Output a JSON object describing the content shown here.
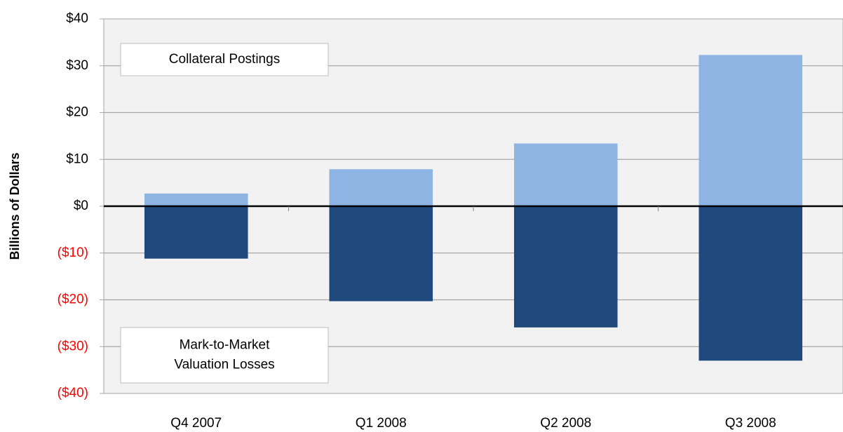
{
  "chart_data": {
    "type": "bar",
    "y_label": "Billions of Dollars",
    "categories": [
      "Q4 2007",
      "Q1 2008",
      "Q2 2008",
      "Q3 2008"
    ],
    "series": [
      {
        "name": "Collateral Postings",
        "color": "#8eb4e3",
        "values": [
          2.7,
          7.9,
          13.4,
          32.3
        ]
      },
      {
        "name": "Mark-to-Market Valuation Losses",
        "color": "#1f497d",
        "values": [
          -11.2,
          -20.3,
          -25.9,
          -33.0
        ]
      }
    ],
    "annotations": [
      {
        "lines": [
          "Collateral Postings"
        ]
      },
      {
        "lines": [
          "Mark-to-Market",
          "Valuation Losses"
        ]
      }
    ],
    "ylim": [
      -40,
      40
    ],
    "yticks": [
      {
        "value": 40,
        "label": "$40"
      },
      {
        "value": 30,
        "label": "$30"
      },
      {
        "value": 20,
        "label": "$20"
      },
      {
        "value": 10,
        "label": "$10"
      },
      {
        "value": 0,
        "label": "$0"
      },
      {
        "value": -10,
        "label": "($10)"
      },
      {
        "value": -20,
        "label": "($20)"
      },
      {
        "value": -30,
        "label": "($30)"
      },
      {
        "value": -40,
        "label": "($40)"
      }
    ],
    "negative_tick_color": "#ff0000",
    "grid": true
  }
}
